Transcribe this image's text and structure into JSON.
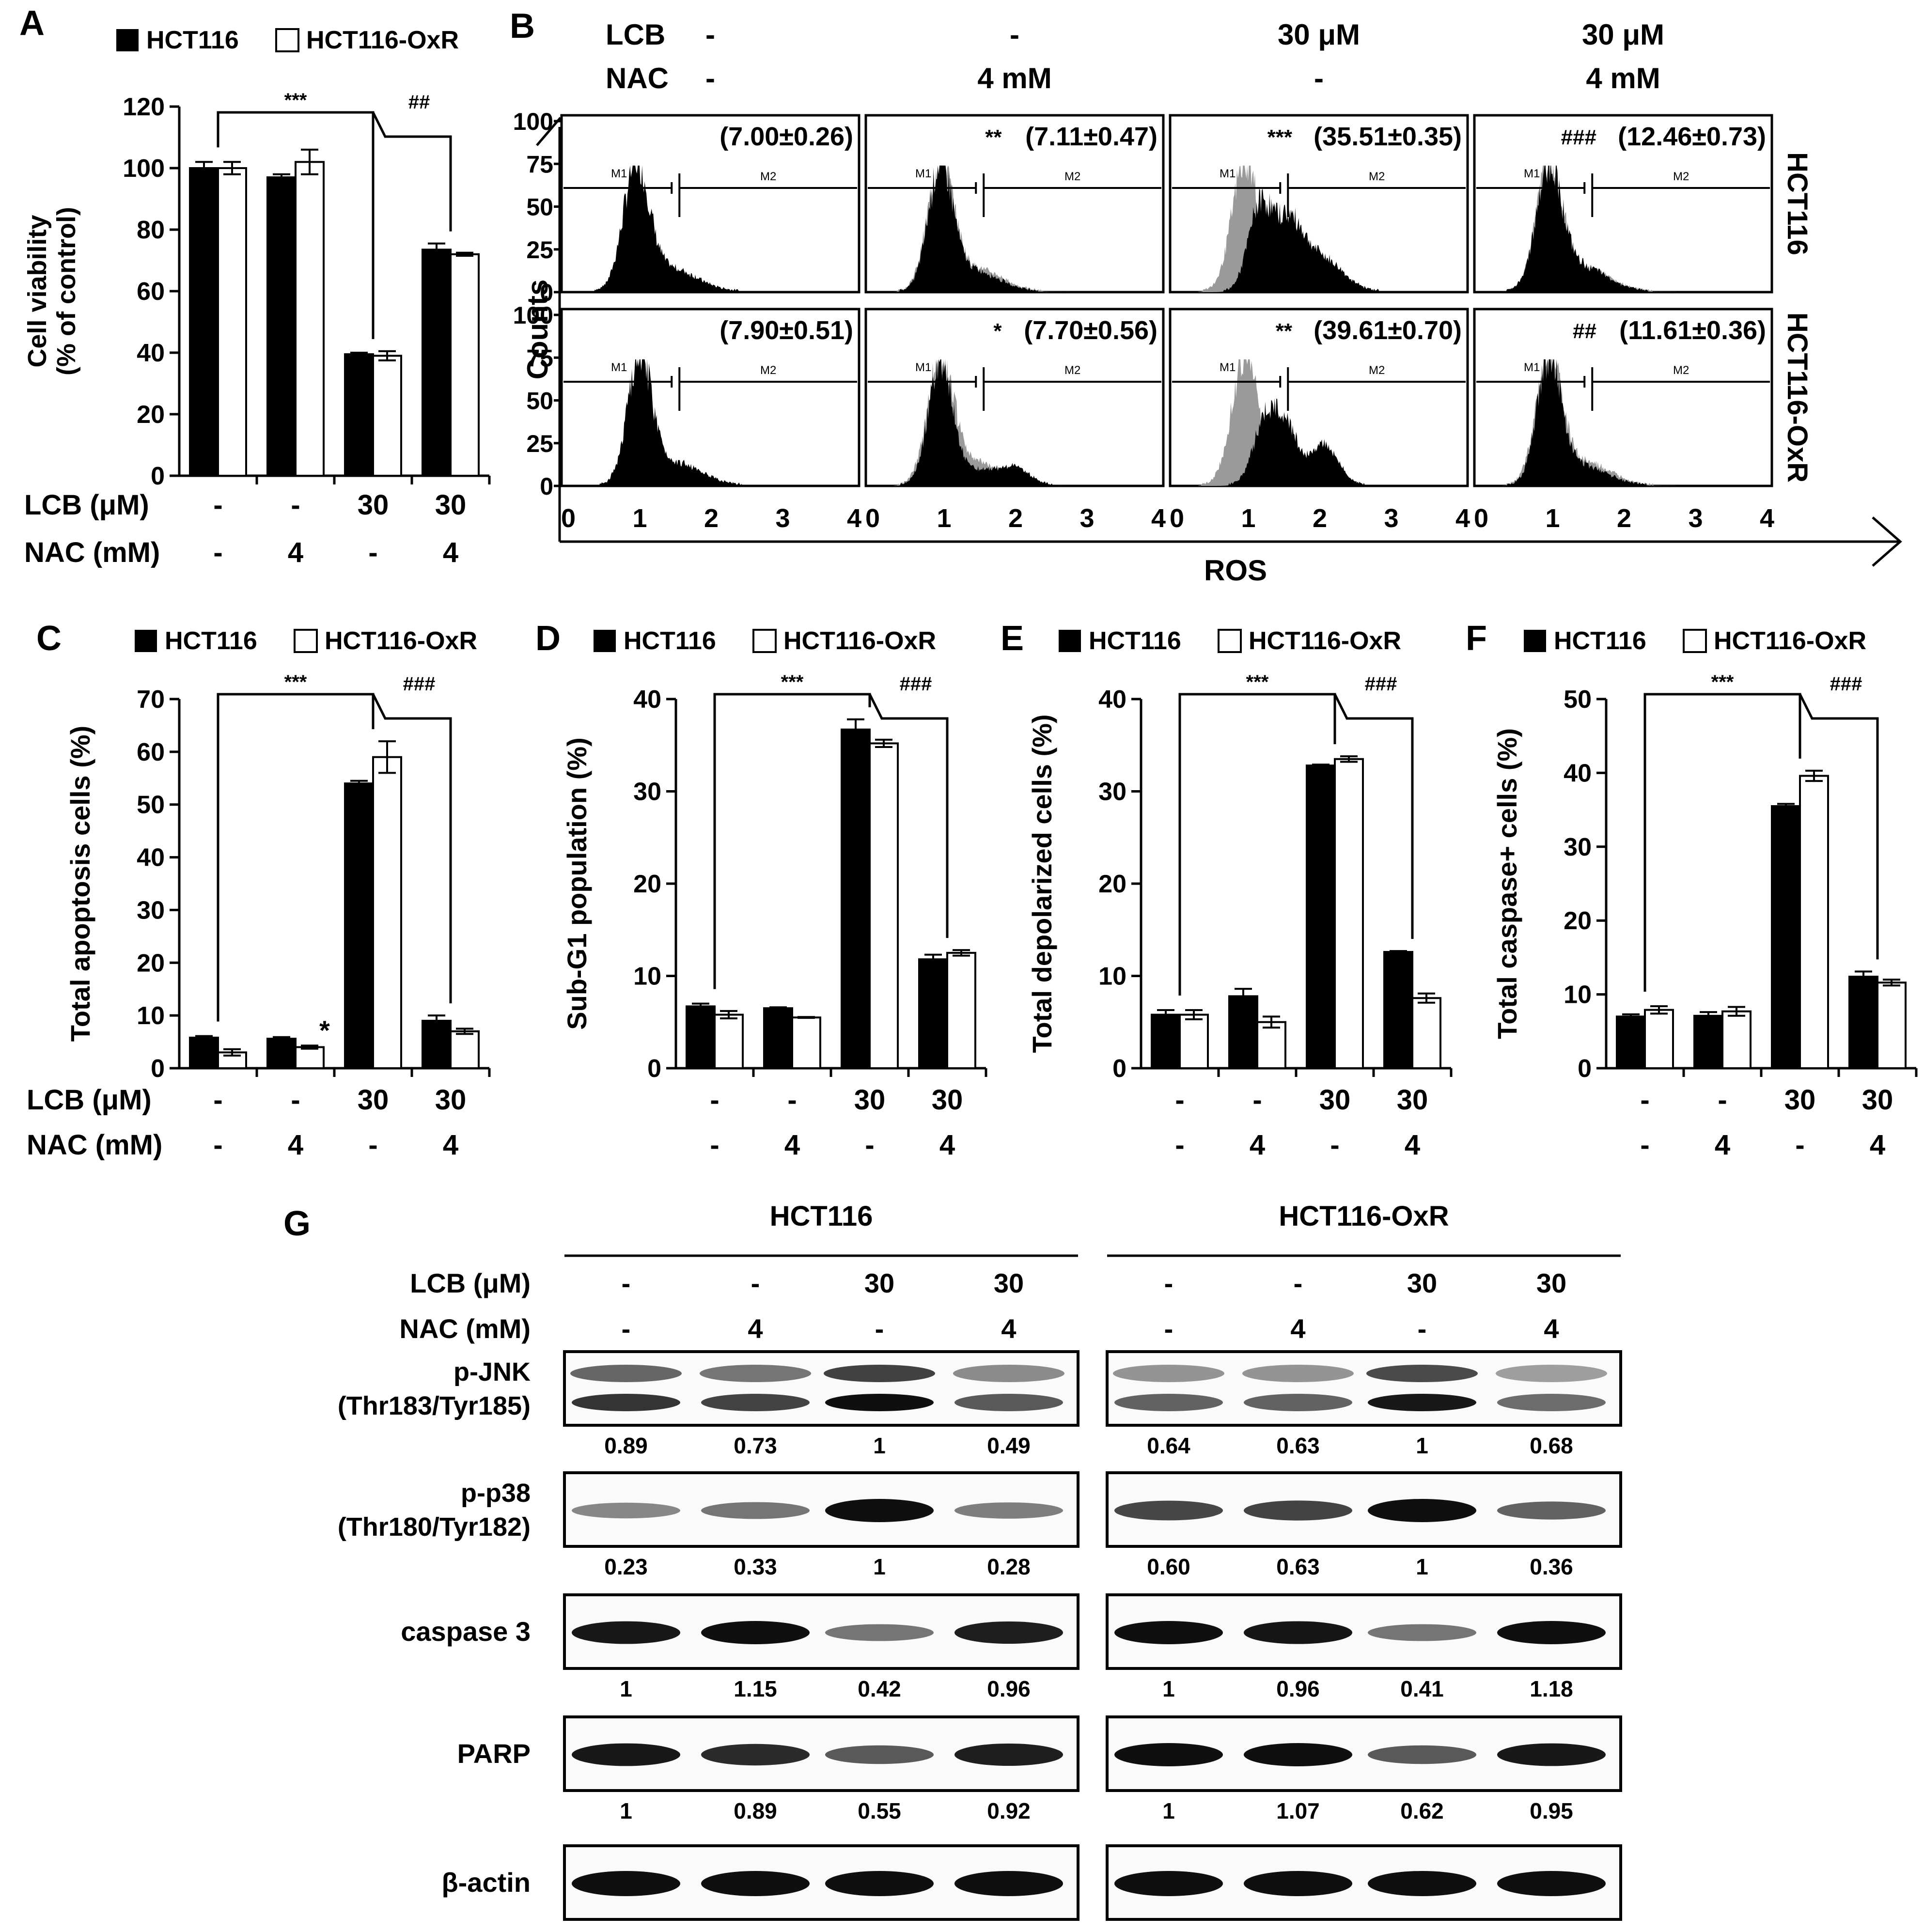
{
  "figure": {
    "panel_labels": [
      "A",
      "B",
      "C",
      "D",
      "E",
      "F",
      "G"
    ],
    "legend": {
      "series1": "HCT116",
      "series2": "HCT116-OxR"
    },
    "treatment_labels": {
      "lcb": "LCB (μM)",
      "nac": "NAC (mM)"
    },
    "lcb_ticks": [
      "-",
      "-",
      "30",
      "30"
    ],
    "nac_ticks": [
      "-",
      "4",
      "-",
      "4"
    ]
  },
  "chart_data": [
    {
      "id": "A",
      "type": "bar",
      "ylabel_line1": "Cell viability",
      "ylabel_line2": "(% of control)",
      "ylim": [
        0,
        120
      ],
      "yticks": [
        0,
        20,
        40,
        60,
        80,
        100,
        120
      ],
      "categories": [
        "-/-",
        "-/4",
        "30/-",
        "30/4"
      ],
      "series": [
        {
          "name": "HCT116",
          "values": [
            100,
            97,
            39.5,
            73.5
          ],
          "errors": [
            2,
            1,
            0.5,
            2
          ]
        },
        {
          "name": "HCT116-OxR",
          "values": [
            100,
            102,
            39,
            72
          ],
          "errors": [
            2,
            4,
            1.5,
            0.5
          ]
        }
      ],
      "sig": [
        {
          "label": "***"
        },
        {
          "label": "##"
        }
      ],
      "extra_marks": []
    },
    {
      "id": "C",
      "type": "bar",
      "ylabel_line1": "Total apoptosis cells (%)",
      "ylabel_line2": "",
      "ylim": [
        0,
        70
      ],
      "yticks": [
        0,
        10,
        20,
        30,
        40,
        50,
        60,
        70
      ],
      "categories": [
        "-/-",
        "-/4",
        "30/-",
        "30/4"
      ],
      "series": [
        {
          "name": "HCT116",
          "values": [
            5.8,
            5.6,
            54,
            9
          ],
          "errors": [
            0.3,
            0.3,
            0.5,
            1
          ]
        },
        {
          "name": "HCT116-OxR",
          "values": [
            3,
            4,
            59,
            7
          ],
          "errors": [
            0.6,
            0.3,
            3,
            0.5
          ]
        }
      ],
      "sig": [
        {
          "label": "***"
        },
        {
          "label": "###"
        }
      ],
      "extra_marks": [
        {
          "label": "*",
          "group": 1,
          "series": 1
        }
      ]
    },
    {
      "id": "D",
      "type": "bar",
      "ylabel_line1": "Sub-G1 population (%)",
      "ylabel_line2": "",
      "ylim": [
        0,
        40
      ],
      "yticks": [
        0,
        10,
        20,
        30,
        40
      ],
      "categories": [
        "-/-",
        "-/4",
        "30/-",
        "30/4"
      ],
      "series": [
        {
          "name": "HCT116",
          "values": [
            6.7,
            6.5,
            36.7,
            11.8
          ],
          "errors": [
            0.3,
            0.1,
            1.1,
            0.5
          ]
        },
        {
          "name": "HCT116-OxR",
          "values": [
            5.8,
            5.5,
            35.2,
            12.5
          ],
          "errors": [
            0.4,
            0.05,
            0.4,
            0.3
          ]
        }
      ],
      "sig": [
        {
          "label": "***"
        },
        {
          "label": "###"
        }
      ],
      "extra_marks": []
    },
    {
      "id": "E",
      "type": "bar",
      "ylabel_line1": "Total depolarized cells (%)",
      "ylabel_line2": "",
      "ylim": [
        0,
        40
      ],
      "yticks": [
        0,
        10,
        20,
        30,
        40
      ],
      "categories": [
        "-/-",
        "-/4",
        "30/-",
        "30/4"
      ],
      "series": [
        {
          "name": "HCT116",
          "values": [
            5.8,
            7.8,
            32.8,
            12.6
          ],
          "errors": [
            0.5,
            0.8,
            0.1,
            0.1
          ]
        },
        {
          "name": "HCT116-OxR",
          "values": [
            5.8,
            5,
            33.5,
            7.6
          ],
          "errors": [
            0.5,
            0.6,
            0.3,
            0.5
          ]
        }
      ],
      "sig": [
        {
          "label": "***"
        },
        {
          "label": "###"
        }
      ],
      "extra_marks": []
    },
    {
      "id": "F",
      "type": "bar",
      "ylabel_line1": "Total caspase+ cells (%)",
      "ylabel_line2": "",
      "ylim": [
        0,
        50
      ],
      "yticks": [
        0,
        10,
        20,
        30,
        40,
        50
      ],
      "categories": [
        "-/-",
        "-/4",
        "30/-",
        "30/4"
      ],
      "series": [
        {
          "name": "HCT116",
          "values": [
            7,
            7.1,
            35.5,
            12.4
          ],
          "errors": [
            0.3,
            0.5,
            0.3,
            0.7
          ]
        },
        {
          "name": "HCT116-OxR",
          "values": [
            7.9,
            7.7,
            39.6,
            11.6
          ],
          "errors": [
            0.5,
            0.6,
            0.7,
            0.4
          ]
        }
      ],
      "sig": [
        {
          "label": "***"
        },
        {
          "label": "###"
        }
      ],
      "extra_marks": []
    }
  ],
  "flow": {
    "lcb_label": "LCB",
    "nac_label": "NAC",
    "lcb_values": [
      "-",
      "-",
      "30 μM",
      "30 μM"
    ],
    "nac_values": [
      "-",
      "4 mM",
      "-",
      "4 mM"
    ],
    "ylabel": "Counts",
    "xlabel": "ROS",
    "yticks": [
      "0",
      "25",
      "50",
      "75",
      "100"
    ],
    "xticks": [
      "0",
      "1",
      "2",
      "3",
      "4"
    ],
    "gate1": "M1",
    "gate2": "M2",
    "row_labels": [
      "HCT116",
      "HCT116-OxR"
    ],
    "cells": [
      [
        {
          "sig": "",
          "value": "(7.00±0.26)"
        },
        {
          "sig": "**",
          "value": "(7.11±0.47)"
        },
        {
          "sig": "***",
          "value": "(35.51±0.35)"
        },
        {
          "sig": "###",
          "value": "(12.46±0.73)"
        }
      ],
      [
        {
          "sig": "",
          "value": "(7.90±0.51)"
        },
        {
          "sig": "*",
          "value": "(7.70±0.56)"
        },
        {
          "sig": "**",
          "value": "(39.61±0.70)"
        },
        {
          "sig": "##",
          "value": "(11.61±0.36)"
        }
      ]
    ]
  },
  "western": {
    "group_titles": [
      "HCT116",
      "HCT116-OxR"
    ],
    "lcb_label": "LCB (μM)",
    "nac_label": "NAC (mM)",
    "lcb": [
      "-",
      "-",
      "30",
      "30"
    ],
    "nac": [
      "-",
      "4",
      "-",
      "4"
    ],
    "rows": [
      {
        "label1": "p-JNK",
        "label2": "(Thr183/Tyr185)",
        "values": [
          [
            "0.89",
            "0.73",
            "1",
            "0.49"
          ],
          [
            "0.64",
            "0.63",
            "1",
            "0.68"
          ]
        ]
      },
      {
        "label1": "p-p38",
        "label2": "(Thr180/Tyr182)",
        "values": [
          [
            "0.23",
            "0.33",
            "1",
            "0.28"
          ],
          [
            "0.60",
            "0.63",
            "1",
            "0.36"
          ]
        ]
      },
      {
        "label1": "caspase 3",
        "label2": "",
        "values": [
          [
            "1",
            "1.15",
            "0.42",
            "0.96"
          ],
          [
            "1",
            "0.96",
            "0.41",
            "1.18"
          ]
        ]
      },
      {
        "label1": "PARP",
        "label2": "",
        "values": [
          [
            "1",
            "0.89",
            "0.55",
            "0.92"
          ],
          [
            "1",
            "1.07",
            "0.62",
            "0.95"
          ]
        ]
      },
      {
        "label1": "β-actin",
        "label2": "",
        "values": []
      }
    ]
  }
}
